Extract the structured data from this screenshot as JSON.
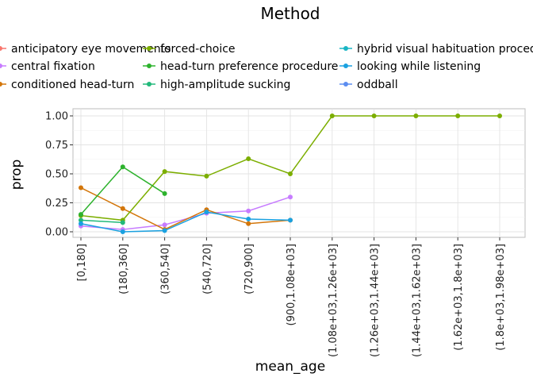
{
  "chart_data": {
    "type": "line",
    "title": "",
    "xlabel": "mean_age",
    "ylabel": "prop",
    "ylim": [
      0,
      1
    ],
    "y_ticks": [
      "0.00",
      "0.25",
      "0.50",
      "0.75",
      "1.00"
    ],
    "y_tick_values": [
      0,
      0.25,
      0.5,
      0.75,
      1.0
    ],
    "grid": true,
    "legend_placement": "top",
    "legend_title": "Method",
    "categories": [
      "[0,180]",
      "(180,360]",
      "(360,540]",
      "(540,720]",
      "(720,900]",
      "(900,1.08e+03]",
      "(1.08e+03,1.26e+03]",
      "(1.26e+03,1.44e+03]",
      "(1.44e+03,1.62e+03]",
      "(1.62e+03,1.8e+03]",
      "(1.8e+03,1.98e+03]"
    ],
    "series": [
      {
        "name": "anticipatory eye movements",
        "color": "#F8766D",
        "values": [
          null,
          null,
          null,
          null,
          null,
          null,
          null,
          null,
          null,
          null,
          null
        ]
      },
      {
        "name": "central fixation",
        "color": "#C77CFF",
        "values": [
          0.05,
          0.02,
          0.06,
          0.16,
          0.18,
          0.3,
          null,
          null,
          null,
          null,
          null
        ]
      },
      {
        "name": "conditioned head-turn",
        "color": "#D3760A",
        "values": [
          0.38,
          0.2,
          0.02,
          0.19,
          0.07,
          0.1,
          null,
          null,
          null,
          null,
          null
        ]
      },
      {
        "name": "forced-choice",
        "color": "#7CAE00",
        "values": [
          0.14,
          0.1,
          0.52,
          0.48,
          0.63,
          0.5,
          1.0,
          1.0,
          1.0,
          1.0,
          1.0
        ]
      },
      {
        "name": "head-turn preference procedure",
        "color": "#2DB22D",
        "values": [
          0.15,
          0.56,
          0.33,
          null,
          null,
          null,
          null,
          null,
          null,
          null,
          null
        ]
      },
      {
        "name": "high-amplitude sucking",
        "color": "#22B97A",
        "values": [
          0.1,
          0.08,
          null,
          null,
          null,
          null,
          null,
          null,
          null,
          null,
          null
        ]
      },
      {
        "name": "hybrid visual habituation procedure",
        "color": "#19B5C4",
        "values": [
          null,
          null,
          null,
          null,
          null,
          null,
          null,
          null,
          null,
          null,
          null
        ]
      },
      {
        "name": "looking while listening",
        "color": "#1AA1E0",
        "values": [
          0.07,
          0.0,
          0.01,
          0.17,
          0.11,
          0.1,
          null,
          null,
          null,
          null,
          null
        ]
      },
      {
        "name": "oddball",
        "color": "#5C8DF0",
        "values": [
          null,
          null,
          null,
          null,
          null,
          null,
          null,
          null,
          null,
          null,
          null
        ]
      }
    ]
  },
  "legend": {
    "title": "Method",
    "entries": [
      {
        "label": "anticipatory eye movements",
        "color": "#F8766D"
      },
      {
        "label": "central fixation",
        "color": "#C77CFF"
      },
      {
        "label": "conditioned head-turn",
        "color": "#D3760A"
      },
      {
        "label": "forced-choice",
        "color": "#7CAE00"
      },
      {
        "label": "head-turn preference procedure",
        "color": "#2DB22D"
      },
      {
        "label": "high-amplitude sucking",
        "color": "#22B97A"
      },
      {
        "label": "hybrid visual habituation procedure",
        "color": "#19B5C4"
      },
      {
        "label": "looking while listening",
        "color": "#1AA1E0"
      },
      {
        "label": "oddball",
        "color": "#5C8DF0"
      }
    ]
  }
}
